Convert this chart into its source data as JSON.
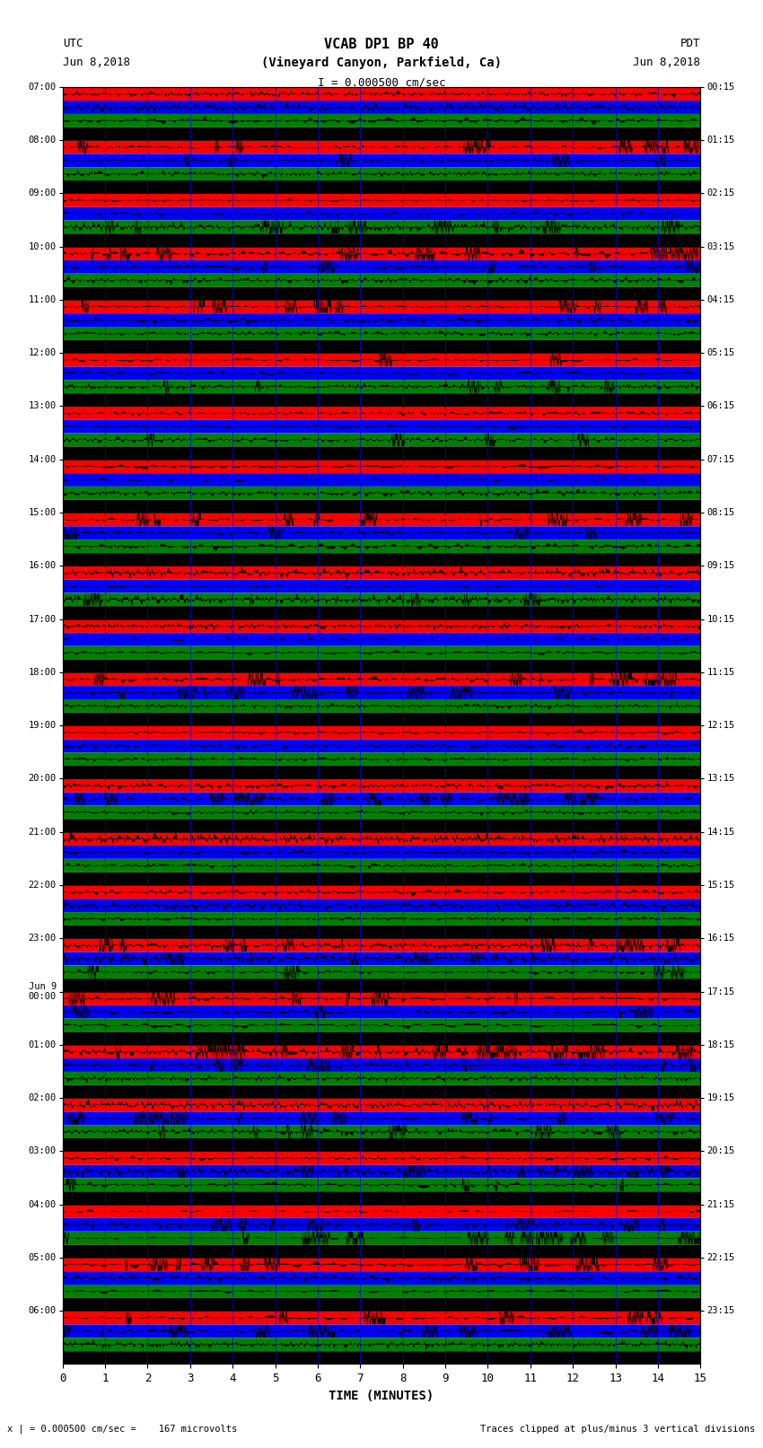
{
  "title_line1": "VCAB DP1 BP 40",
  "title_line2": "(Vineyard Canyon, Parkfield, Ca)",
  "scale_text": "I = 0.000500 cm/sec",
  "utc_label": "UTC",
  "utc_date": "Jun 8,2018",
  "pdt_label": "PDT",
  "pdt_date": "Jun 8,2018",
  "bottom_left": "x | = 0.000500 cm/sec =    167 microvolts",
  "bottom_right": "Traces clipped at plus/minus 3 vertical divisions",
  "xlabel": "TIME (MINUTES)",
  "xlim": [
    0,
    15
  ],
  "xticks": [
    0,
    1,
    2,
    3,
    4,
    5,
    6,
    7,
    8,
    9,
    10,
    11,
    12,
    13,
    14,
    15
  ],
  "left_times": [
    "07:00",
    "08:00",
    "09:00",
    "10:00",
    "11:00",
    "12:00",
    "13:00",
    "14:00",
    "15:00",
    "16:00",
    "17:00",
    "18:00",
    "19:00",
    "20:00",
    "21:00",
    "22:00",
    "23:00",
    "Jun 9\n00:00",
    "01:00",
    "02:00",
    "03:00",
    "04:00",
    "05:00",
    "06:00"
  ],
  "right_times": [
    "00:15",
    "01:15",
    "02:15",
    "03:15",
    "04:15",
    "05:15",
    "06:15",
    "07:15",
    "08:15",
    "09:15",
    "10:15",
    "11:15",
    "12:15",
    "13:15",
    "14:15",
    "15:15",
    "16:15",
    "17:15",
    "18:15",
    "19:15",
    "20:15",
    "21:15",
    "22:15",
    "23:15"
  ],
  "n_rows": 24,
  "n_subrows": 4,
  "bg_color": "white",
  "seed": 42
}
